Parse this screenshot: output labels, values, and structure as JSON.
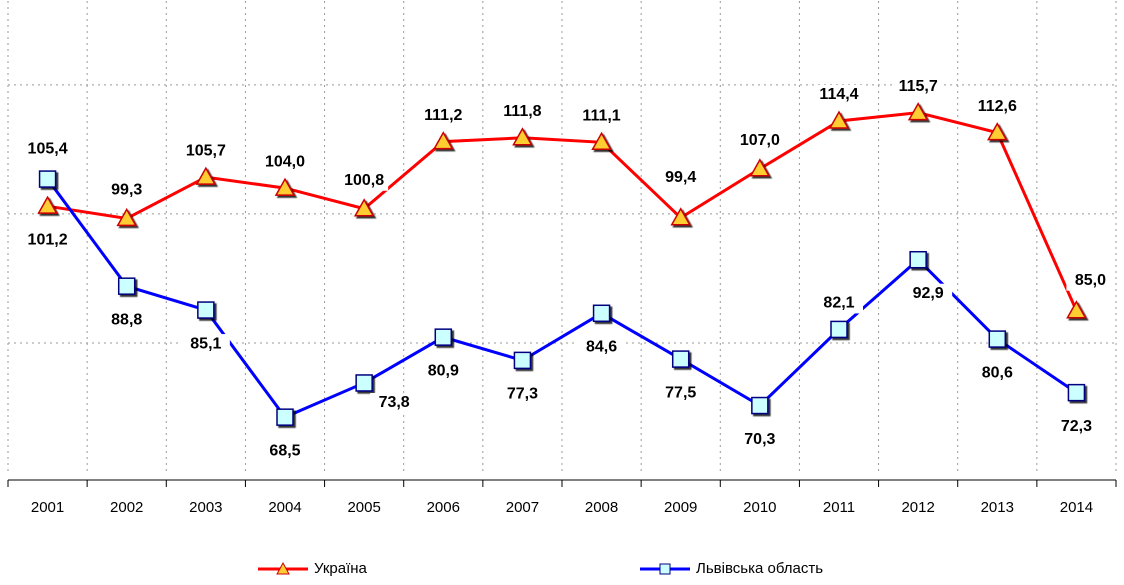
{
  "chart_data": {
    "type": "line",
    "categories": [
      "2001",
      "2002",
      "2003",
      "2004",
      "2005",
      "2006",
      "2007",
      "2008",
      "2009",
      "2010",
      "2011",
      "2012",
      "2013",
      "2014"
    ],
    "series": [
      {
        "name": "Україна",
        "color": "#ff0000",
        "values": [
          101.2,
          99.3,
          105.7,
          104.0,
          100.8,
          111.2,
          111.8,
          111.1,
          99.4,
          107.0,
          114.4,
          115.7,
          112.6,
          85.0
        ],
        "value_labels": [
          "101,2",
          "99,3",
          "105,7",
          "104,0",
          "100,8",
          "111,2",
          "111,8",
          "111,1",
          "99,4",
          "107,0",
          "114,4",
          "115,7",
          "112,6",
          "85,0"
        ]
      },
      {
        "name": "Львівська область",
        "color": "#0000ff",
        "values": [
          105.4,
          88.8,
          85.1,
          68.5,
          73.8,
          80.9,
          77.3,
          84.6,
          77.5,
          70.3,
          82.1,
          92.9,
          80.6,
          72.3
        ],
        "value_labels": [
          "105,4",
          "88,8",
          "85,1",
          "68,5",
          "73,8",
          "80,9",
          "77,3",
          "84,6",
          "77,5",
          "70,3",
          "82,1",
          "92,9",
          "80,6",
          "72,3"
        ]
      }
    ],
    "ylim": [
      60,
      133
    ],
    "yticks": [
      60,
      80,
      100,
      120
    ],
    "grid": true
  }
}
